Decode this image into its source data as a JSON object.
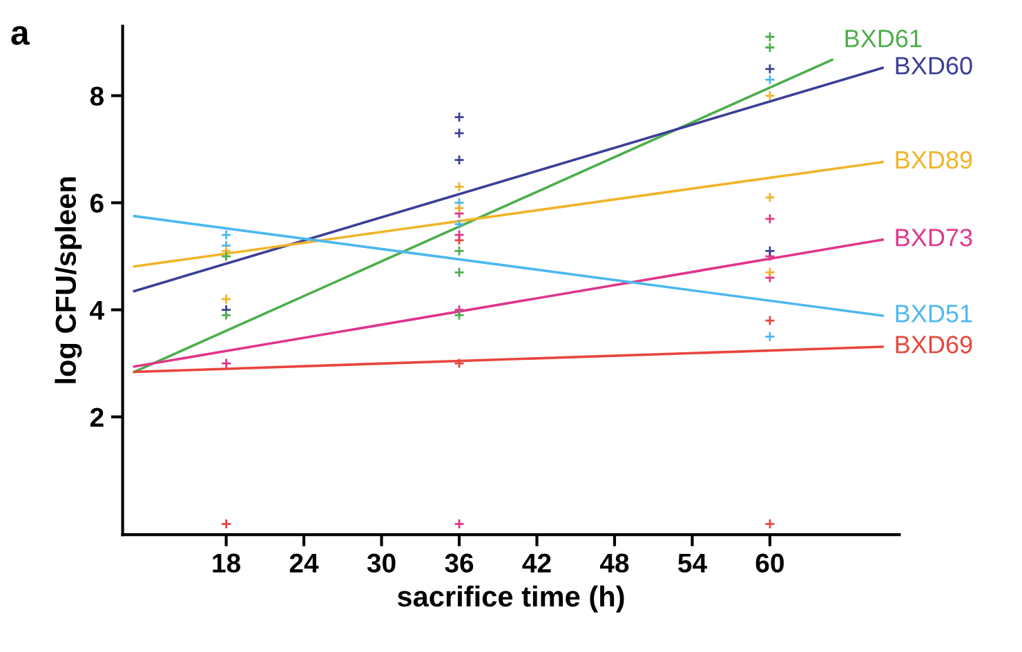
{
  "chart_data": {
    "type": "scatter",
    "title": "a",
    "xlabel": "sacrifice time (h)",
    "ylabel": "log CFU/spleen",
    "xlim": [
      10,
      70
    ],
    "xticks": [
      18,
      24,
      30,
      36,
      42,
      48,
      54,
      60
    ],
    "ylim": [
      -0.2,
      9.3
    ],
    "yticks": [
      2,
      4,
      6,
      8
    ],
    "grid": false,
    "legend": false,
    "marker": "cross",
    "series": [
      {
        "color": "#e8453c",
        "x": [
          18,
          36,
          36,
          60,
          60
        ],
        "values": [
          0,
          5.3,
          3.0,
          3.8,
          0
        ]
      },
      {
        "color": "#4cb8ef",
        "x": [
          18,
          18,
          36,
          36,
          60,
          60
        ],
        "values": [
          5.4,
          5.2,
          6.0,
          5.6,
          8.3,
          3.5
        ]
      },
      {
        "color": "#e0358a",
        "x": [
          18,
          36,
          36,
          36,
          36,
          60,
          60,
          60
        ],
        "values": [
          3.0,
          5.8,
          5.4,
          4.0,
          0,
          5.7,
          5.0,
          4.6
        ]
      },
      {
        "color": "#f0b429",
        "x": [
          18,
          18,
          36,
          36,
          60,
          60,
          60
        ],
        "values": [
          5.1,
          4.2,
          6.3,
          5.9,
          8.0,
          6.1,
          4.7
        ]
      },
      {
        "color": "#3b3f96",
        "x": [
          18,
          36,
          36,
          36,
          60,
          60
        ],
        "values": [
          4.0,
          7.6,
          7.3,
          6.8,
          8.5,
          5.1
        ]
      },
      {
        "color": "#4cae4c",
        "x": [
          18,
          18,
          36,
          36,
          36,
          60,
          60
        ],
        "values": [
          5.0,
          3.9,
          5.1,
          4.7,
          3.9,
          9.1,
          8.9
        ]
      },
      {
        "type": "line",
        "name": "BXD61",
        "color": "#4cae4c",
        "x": [
          10.9,
          64.8
        ],
        "values": [
          2.84,
          8.67
        ],
        "marker": "none",
        "line_style": "solid"
      },
      {
        "type": "line",
        "name": "BXD60",
        "color": "#3b3f96",
        "x": [
          10.9,
          68.7
        ],
        "values": [
          4.35,
          8.52
        ],
        "marker": "none",
        "line_style": "solid"
      },
      {
        "type": "line",
        "name": "BXD89",
        "color": "#f0b429",
        "x": [
          10.9,
          68.7
        ],
        "values": [
          4.81,
          6.76
        ],
        "marker": "none",
        "line_style": "solid"
      },
      {
        "type": "line",
        "name": "BXD73",
        "color": "#e0358a",
        "x": [
          10.9,
          68.7
        ],
        "values": [
          2.94,
          5.31
        ],
        "marker": "none",
        "line_style": "solid"
      },
      {
        "type": "line",
        "name": "BXD51",
        "color": "#4cb8ef",
        "x": [
          10.9,
          68.7
        ],
        "values": [
          5.75,
          3.89
        ],
        "marker": "none",
        "line_style": "solid"
      },
      {
        "type": "line",
        "name": "BXD69",
        "color": "#e8453c",
        "x": [
          10.9,
          68.7
        ],
        "values": [
          2.84,
          3.31
        ],
        "marker": "none",
        "line_style": "solid"
      }
    ]
  }
}
